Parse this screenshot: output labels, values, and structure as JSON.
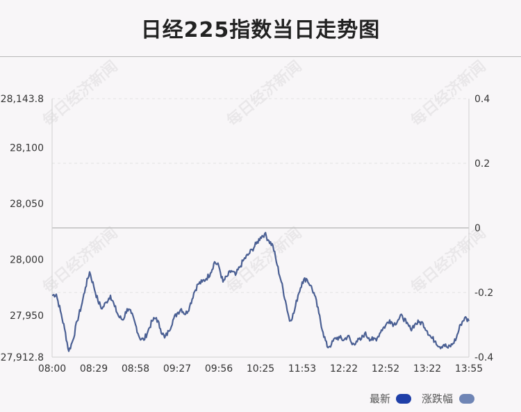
{
  "title": "日经225指数当日走势图",
  "watermark": "每日经济新闻",
  "legend": [
    {
      "name": "最新",
      "color": "#1f3fa8"
    },
    {
      "name": "涨跌幅",
      "color": "#6f85b5"
    }
  ],
  "chart_data": {
    "type": "line",
    "title": "日经225指数当日走势图",
    "series_color": "#4a5f93",
    "grid": "dashed horizontal",
    "x_ticks": [
      "08:00",
      "08:29",
      "08:58",
      "09:27",
      "09:56",
      "10:25",
      "11:53",
      "12:22",
      "12:52",
      "13:22",
      "13:55"
    ],
    "y_left_ticks": [
      {
        "label": "28,143.8",
        "value": 28143.8
      },
      {
        "label": "28,100",
        "value": 28100
      },
      {
        "label": "28,050",
        "value": 28050
      },
      {
        "label": "28,000",
        "value": 28000
      },
      {
        "label": "27,950",
        "value": 27950
      },
      {
        "label": "27,912.8",
        "value": 27912.8
      }
    ],
    "y_right_ticks": [
      {
        "label": "0.4",
        "value": 0.4
      },
      {
        "label": "0.2",
        "value": 0.2
      },
      {
        "label": "0",
        "value": 0
      },
      {
        "label": "-0.2",
        "value": -0.2
      },
      {
        "label": "-0.4",
        "value": -0.4
      }
    ],
    "ylim_left": [
      27912.8,
      28143.8
    ],
    "ylim_right": [
      -0.4,
      0.4
    ],
    "baseline_value": 28028.4,
    "x_index_range": [
      0,
      100
    ],
    "series": [
      {
        "values": [
          [
            0,
            27968
          ],
          [
            1,
            27969
          ],
          [
            2,
            27954
          ],
          [
            3,
            27938
          ],
          [
            4,
            27918
          ],
          [
            5,
            27928
          ],
          [
            6,
            27945
          ],
          [
            7,
            27958
          ],
          [
            8,
            27975
          ],
          [
            9,
            27989
          ],
          [
            10,
            27976
          ],
          [
            11,
            27963
          ],
          [
            12,
            27956
          ],
          [
            13,
            27962
          ],
          [
            14,
            27968
          ],
          [
            15,
            27958
          ],
          [
            16,
            27949
          ],
          [
            17,
            27946
          ],
          [
            18,
            27956
          ],
          [
            19,
            27952
          ],
          [
            20,
            27942
          ],
          [
            21,
            27930
          ],
          [
            22,
            27928
          ],
          [
            23,
            27936
          ],
          [
            24,
            27945
          ],
          [
            25,
            27948
          ],
          [
            26,
            27938
          ],
          [
            27,
            27930
          ],
          [
            28,
            27936
          ],
          [
            29,
            27946
          ],
          [
            30,
            27952
          ],
          [
            31,
            27956
          ],
          [
            32,
            27951
          ],
          [
            33,
            27958
          ],
          [
            34,
            27970
          ],
          [
            35,
            27978
          ],
          [
            36,
            27980
          ],
          [
            37,
            27983
          ],
          [
            38,
            27988
          ],
          [
            39,
            27998
          ],
          [
            40,
            27994
          ],
          [
            41,
            27980
          ],
          [
            42,
            27985
          ],
          [
            43,
            27990
          ],
          [
            44,
            27986
          ],
          [
            45,
            27993
          ],
          [
            46,
            28000
          ],
          [
            47,
            28004
          ],
          [
            48,
            28009
          ],
          [
            49,
            28014
          ],
          [
            50,
            28020
          ],
          [
            51,
            28023
          ],
          [
            52,
            28017
          ],
          [
            53,
            28012
          ],
          [
            54,
            27995
          ],
          [
            55,
            27980
          ],
          [
            56,
            27963
          ],
          [
            57,
            27945
          ],
          [
            58,
            27952
          ],
          [
            59,
            27968
          ],
          [
            60,
            27980
          ],
          [
            61,
            27983
          ],
          [
            62,
            27977
          ],
          [
            63,
            27968
          ],
          [
            64,
            27952
          ],
          [
            65,
            27935
          ],
          [
            66,
            27922
          ],
          [
            67,
            27924
          ],
          [
            68,
            27930
          ],
          [
            69,
            27930
          ],
          [
            70,
            27928
          ],
          [
            71,
            27932
          ],
          [
            72,
            27924
          ],
          [
            73,
            27927
          ],
          [
            74,
            27928
          ],
          [
            75,
            27934
          ],
          [
            76,
            27930
          ],
          [
            77,
            27928
          ],
          [
            78,
            27930
          ],
          [
            79,
            27937
          ],
          [
            80,
            27941
          ],
          [
            81,
            27946
          ],
          [
            82,
            27942
          ],
          [
            83,
            27946
          ],
          [
            84,
            27950
          ],
          [
            85,
            27943
          ],
          [
            86,
            27938
          ],
          [
            87,
            27942
          ],
          [
            88,
            27944
          ],
          [
            89,
            27943
          ],
          [
            90,
            27936
          ],
          [
            91,
            27930
          ],
          [
            92,
            27927
          ],
          [
            93,
            27922
          ],
          [
            94,
            27924
          ],
          [
            95,
            27921
          ],
          [
            96,
            27924
          ],
          [
            97,
            27930
          ],
          [
            98,
            27942
          ],
          [
            99,
            27948
          ],
          [
            100,
            27945
          ]
        ]
      }
    ]
  }
}
